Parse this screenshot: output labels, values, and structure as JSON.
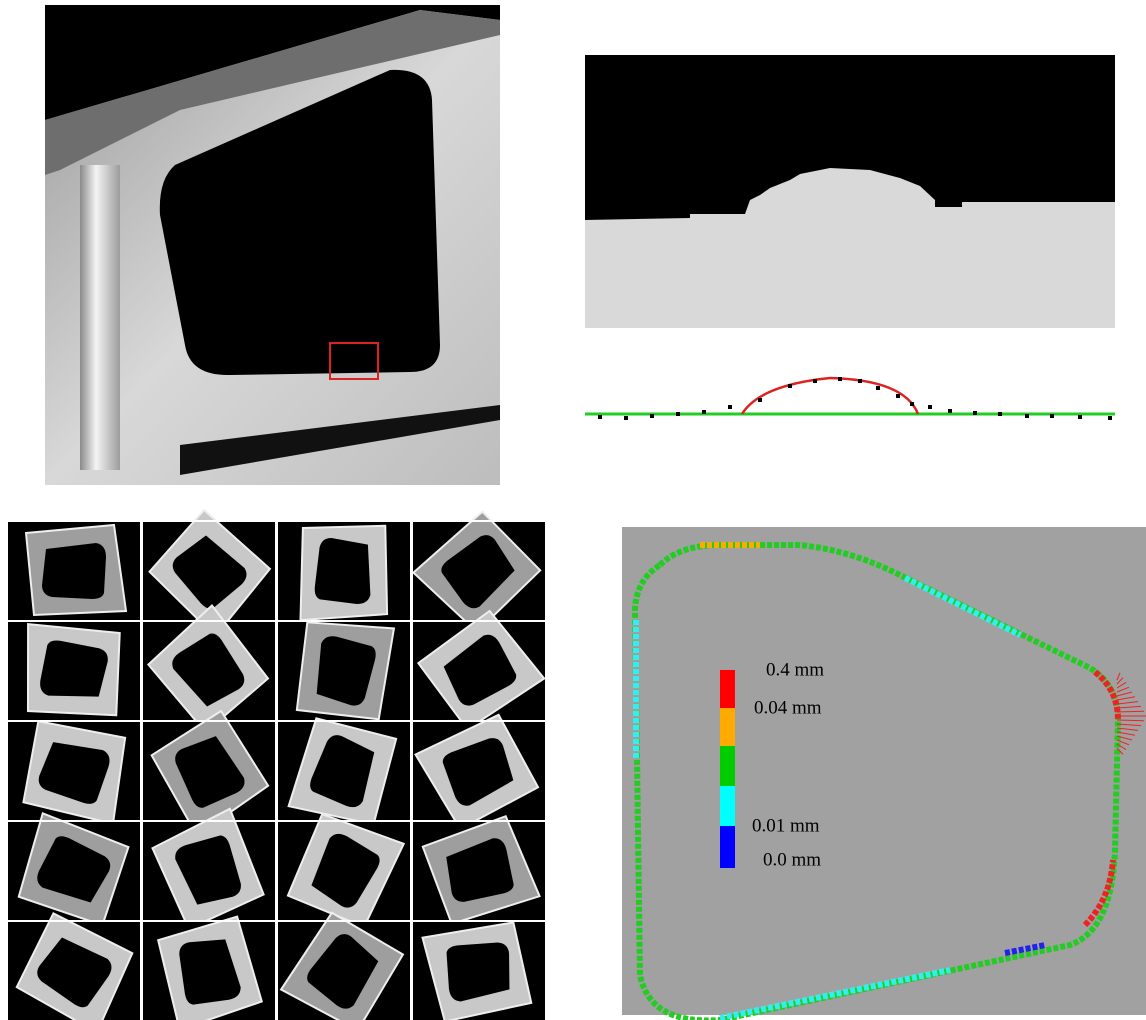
{
  "legend": {
    "labels": [
      "0.4 mm",
      "0.04 mm",
      "0.01 mm",
      "0.0 mm"
    ]
  }
}
